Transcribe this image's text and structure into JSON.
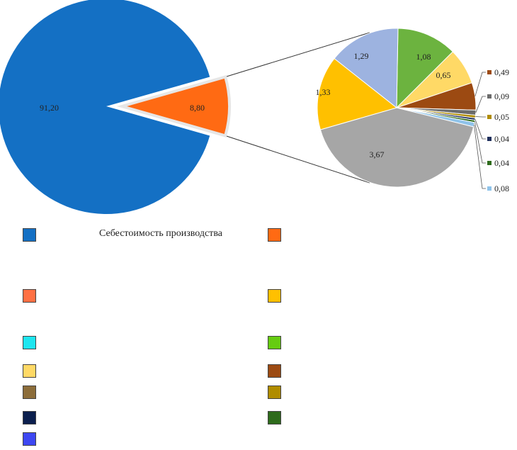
{
  "chart_data": {
    "type": "pie",
    "main": {
      "slices": [
        {
          "label": "91,20",
          "value": 91.2,
          "color": "#1470c4"
        },
        {
          "label": "8,80",
          "value": 8.8,
          "color": "#ff6a13"
        }
      ]
    },
    "detail": {
      "slices": [
        {
          "label": "1,08",
          "value": 1.08,
          "color": "#6cb33f"
        },
        {
          "label": "0,65",
          "value": 0.65,
          "color": "#ffd966"
        },
        {
          "label": "0,49",
          "value": 0.49,
          "color": "#9c4a12"
        },
        {
          "label": "0,09",
          "value": 0.09,
          "color": "#6b6b6b"
        },
        {
          "label": "0,05",
          "value": 0.05,
          "color": "#b08c00"
        },
        {
          "label": "0,04",
          "value": 0.04,
          "color": "#1f2f5c"
        },
        {
          "label": "0,04",
          "value": 0.04,
          "color": "#2e6b1c"
        },
        {
          "label": "0,08",
          "value": 0.08,
          "color": "#8fc3ea"
        },
        {
          "label": "3,67",
          "value": 3.67,
          "color": "#a6a6a6"
        },
        {
          "label": "1,33",
          "value": 1.33,
          "color": "#ffc000"
        },
        {
          "label": "1,29",
          "value": 1.29,
          "color": "#9db3e0"
        }
      ]
    },
    "legend": [
      {
        "label": "Себестоимость производства",
        "color": "#1470c4"
      },
      {
        "label": "",
        "color": "#ff6a13"
      },
      {
        "label": "",
        "color": "#ff7043"
      },
      {
        "label": "",
        "color": "#ffc000"
      },
      {
        "label": "",
        "color": "#1ee6f0"
      },
      {
        "label": "",
        "color": "#66cc11"
      },
      {
        "label": "",
        "color": "#ffd966"
      },
      {
        "label": "",
        "color": "#9c4a12"
      },
      {
        "label": "",
        "color": "#8c6d3a"
      },
      {
        "label": "",
        "color": "#b08c00"
      },
      {
        "label": "",
        "color": "#0b1f4d"
      },
      {
        "label": "",
        "color": "#2e6b1c"
      },
      {
        "label": "",
        "color": "#3d47f2"
      }
    ]
  }
}
